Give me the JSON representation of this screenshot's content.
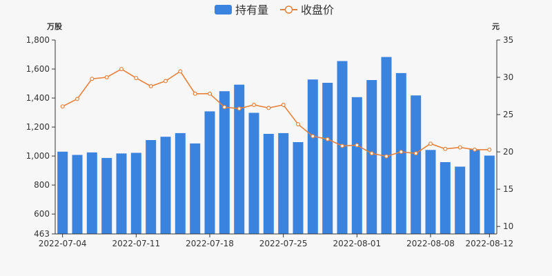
{
  "chart_data": {
    "type": "bar",
    "legend": {
      "position": "top-center",
      "items": [
        "持有量",
        "收盘价"
      ]
    },
    "left_axis": {
      "unit": "万股",
      "ticks": [
        463,
        600,
        800,
        1000,
        1200,
        1400,
        1600,
        1800
      ],
      "tick_labels": [
        "463",
        "600",
        "800",
        "1,000",
        "1,200",
        "1,400",
        "1,600",
        "1,800"
      ],
      "range": [
        463,
        1800
      ]
    },
    "right_axis": {
      "unit": "元",
      "ticks": [
        10,
        15,
        20,
        25,
        30,
        35
      ],
      "tick_labels": [
        "10",
        "15",
        "20",
        "25",
        "30",
        "35"
      ],
      "range": [
        9,
        35
      ]
    },
    "x_tick_labels": [
      "2022-07-04",
      "2022-07-11",
      "2022-07-18",
      "2022-07-25",
      "2022-08-01",
      "2022-08-08",
      "2022-08-12"
    ],
    "colors": {
      "bar": "#3a84e0",
      "line": "#e8803a",
      "axis": "#333333"
    },
    "series": [
      {
        "name": "持有量",
        "type": "bar",
        "axis": "left",
        "values": [
          1030,
          1008,
          1025,
          987,
          1018,
          1022,
          1110,
          1133,
          1158,
          1087,
          1308,
          1447,
          1492,
          1298,
          1153,
          1158,
          1096,
          1528,
          1505,
          1655,
          1406,
          1524,
          1683,
          1572,
          1418,
          1042,
          958,
          927,
          1046,
          1003
        ]
      },
      {
        "name": "收盘价",
        "type": "line",
        "axis": "right",
        "values": [
          26.1,
          27.1,
          29.8,
          30.0,
          31.1,
          29.9,
          28.8,
          29.5,
          30.8,
          27.8,
          27.8,
          26.0,
          25.8,
          26.3,
          25.9,
          26.3,
          23.7,
          22.1,
          21.7,
          20.8,
          20.9,
          19.8,
          19.4,
          20.0,
          19.8,
          21.1,
          20.4,
          20.6,
          20.3,
          20.3
        ]
      }
    ]
  }
}
